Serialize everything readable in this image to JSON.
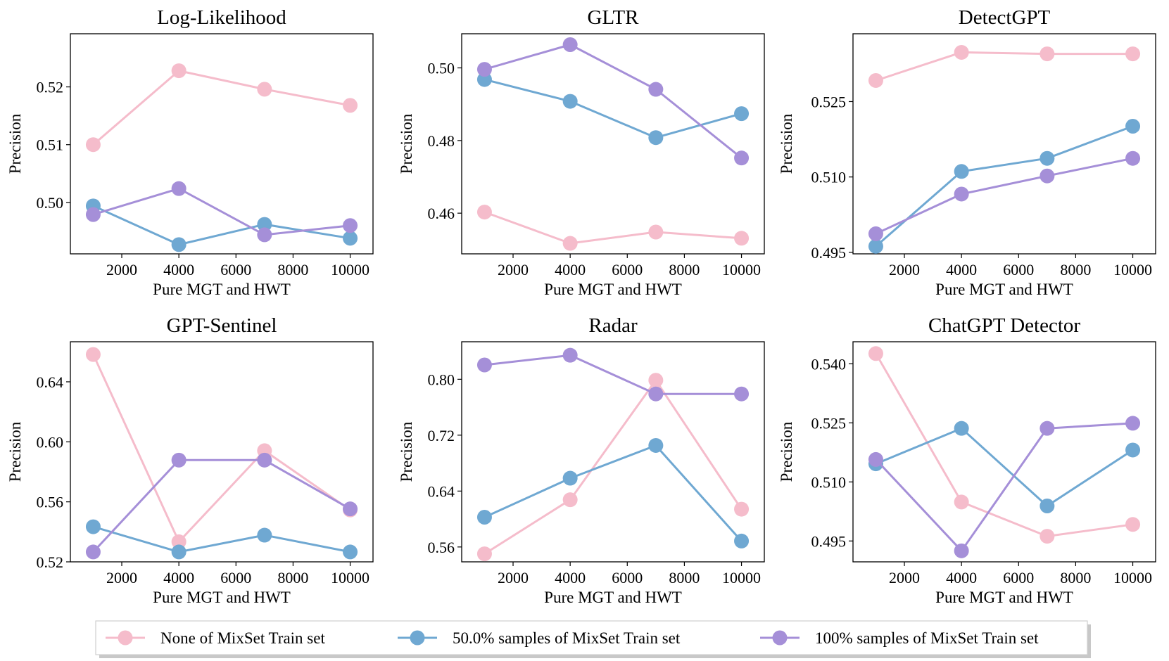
{
  "legend": {
    "position": "bottom-center",
    "entries": [
      "None of MixSet Train set",
      "50.0% samples of MixSet Train set",
      "100% samples of MixSet Train set"
    ]
  },
  "colors": {
    "none": "#f5bccb",
    "half": "#6fa8d2",
    "full": "#a58fd8"
  },
  "chart_data": [
    {
      "type": "line",
      "title": "Log-Likelihood",
      "xlabel": "Pure MGT and HWT",
      "ylabel": "Precision",
      "x": [
        1000,
        4000,
        7000,
        10000
      ],
      "xlim": [
        200,
        10800
      ],
      "xticks": [
        2000,
        4000,
        6000,
        8000,
        10000
      ],
      "ylim": [
        0.4911,
        0.5292
      ],
      "yticks": [
        0.5,
        0.51,
        0.52
      ],
      "ytick_labels": [
        "0.50",
        "0.51",
        "0.52"
      ],
      "series": [
        {
          "name": "None of MixSet Train set",
          "values": [
            0.51,
            0.5228,
            0.5196,
            0.5168
          ]
        },
        {
          "name": "50.0% samples of MixSet Train set",
          "values": [
            0.4994,
            0.4927,
            0.4962,
            0.4938
          ]
        },
        {
          "name": "100% samples of MixSet Train set",
          "values": [
            0.4979,
            0.5024,
            0.4944,
            0.496
          ]
        }
      ]
    },
    {
      "type": "line",
      "title": "GLTR",
      "xlabel": "Pure MGT and HWT",
      "ylabel": "Precision",
      "x": [
        1000,
        4000,
        7000,
        10000
      ],
      "xlim": [
        200,
        10800
      ],
      "xticks": [
        2000,
        4000,
        6000,
        8000,
        10000
      ],
      "ylim": [
        0.4488,
        0.5094
      ],
      "yticks": [
        0.46,
        0.48,
        0.5
      ],
      "ytick_labels": [
        "0.46",
        "0.48",
        "0.50"
      ],
      "series": [
        {
          "name": "None of MixSet Train set",
          "values": [
            0.4603,
            0.4517,
            0.4548,
            0.4531
          ]
        },
        {
          "name": "50.0% samples of MixSet Train set",
          "values": [
            0.4968,
            0.4908,
            0.4808,
            0.4874
          ]
        },
        {
          "name": "100% samples of MixSet Train set",
          "values": [
            0.4996,
            0.5064,
            0.4941,
            0.4752
          ]
        }
      ]
    },
    {
      "type": "line",
      "title": "DetectGPT",
      "xlabel": "Pure MGT and HWT",
      "ylabel": "Precision",
      "x": [
        1000,
        4000,
        7000,
        10000
      ],
      "xlim": [
        200,
        10800
      ],
      "xticks": [
        2000,
        4000,
        6000,
        8000,
        10000
      ],
      "ylim": [
        0.4947,
        0.5385
      ],
      "yticks": [
        0.495,
        0.51,
        0.525
      ],
      "ytick_labels": [
        "0.495",
        "0.510",
        "0.525"
      ],
      "series": [
        {
          "name": "None of MixSet Train set",
          "values": [
            0.5292,
            0.5348,
            0.5345,
            0.5345
          ]
        },
        {
          "name": "50.0% samples of MixSet Train set",
          "values": [
            0.4962,
            0.5111,
            0.5137,
            0.5201
          ]
        },
        {
          "name": "100% samples of MixSet Train set",
          "values": [
            0.4987,
            0.5066,
            0.5102,
            0.5137
          ]
        }
      ]
    },
    {
      "type": "line",
      "title": "GPT-Sentinel",
      "xlabel": "Pure MGT and HWT",
      "ylabel": "Precision",
      "x": [
        1000,
        4000,
        7000,
        10000
      ],
      "xlim": [
        200,
        10800
      ],
      "xticks": [
        2000,
        4000,
        6000,
        8000,
        10000
      ],
      "ylim": [
        0.52,
        0.6667
      ],
      "yticks": [
        0.52,
        0.56,
        0.6,
        0.64
      ],
      "ytick_labels": [
        "0.52",
        "0.56",
        "0.60",
        "0.64"
      ],
      "series": [
        {
          "name": "None of MixSet Train set",
          "values": [
            0.6582,
            0.5334,
            0.5941,
            0.5546
          ]
        },
        {
          "name": "50.0% samples of MixSet Train set",
          "values": [
            0.5434,
            0.5266,
            0.5378,
            0.5266
          ]
        },
        {
          "name": "100% samples of MixSet Train set",
          "values": [
            0.5266,
            0.5878,
            0.5878,
            0.5553
          ]
        }
      ]
    },
    {
      "type": "line",
      "title": "Radar",
      "xlabel": "Pure MGT and HWT",
      "ylabel": "Precision",
      "x": [
        1000,
        4000,
        7000,
        10000
      ],
      "xlim": [
        200,
        10800
      ],
      "xticks": [
        2000,
        4000,
        6000,
        8000,
        10000
      ],
      "ylim": [
        0.5387,
        0.8537
      ],
      "yticks": [
        0.56,
        0.64,
        0.72,
        0.8
      ],
      "ytick_labels": [
        "0.56",
        "0.64",
        "0.72",
        "0.80"
      ],
      "series": [
        {
          "name": "None of MixSet Train set",
          "values": [
            0.5502,
            0.6276,
            0.7986,
            0.6141
          ]
        },
        {
          "name": "50.0% samples of MixSet Train set",
          "values": [
            0.6026,
            0.6584,
            0.7053,
            0.5685
          ]
        },
        {
          "name": "100% samples of MixSet Train set",
          "values": [
            0.8205,
            0.8344,
            0.779,
            0.779
          ]
        }
      ]
    },
    {
      "type": "line",
      "title": "ChatGPT Detector",
      "xlabel": "Pure MGT and HWT",
      "ylabel": "Precision",
      "x": [
        1000,
        4000,
        7000,
        10000
      ],
      "xlim": [
        200,
        10800
      ],
      "xticks": [
        2000,
        4000,
        6000,
        8000,
        10000
      ],
      "ylim": [
        0.4897,
        0.5456
      ],
      "yticks": [
        0.495,
        0.51,
        0.525,
        0.54
      ],
      "ytick_labels": [
        "0.495",
        "0.510",
        "0.525",
        "0.540"
      ],
      "series": [
        {
          "name": "None of MixSet Train set",
          "values": [
            0.5426,
            0.5049,
            0.4962,
            0.4992
          ]
        },
        {
          "name": "50.0% samples of MixSet Train set",
          "values": [
            0.5146,
            0.5236,
            0.5039,
            0.5181
          ]
        },
        {
          "name": "100% samples of MixSet Train set",
          "values": [
            0.5157,
            0.4925,
            0.5236,
            0.5249
          ]
        }
      ]
    }
  ]
}
